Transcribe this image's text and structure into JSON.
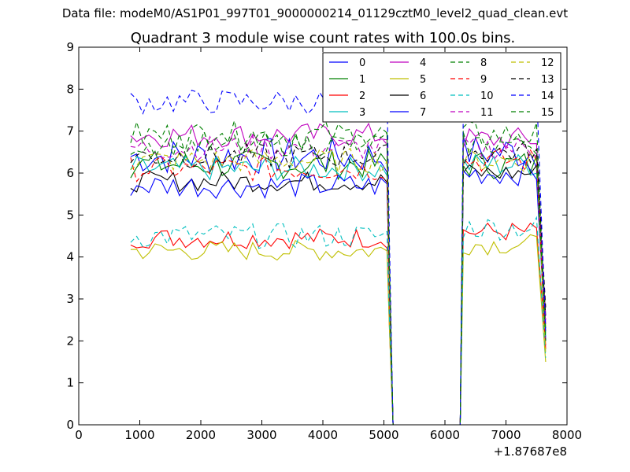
{
  "suptitle": "Data file: modeM0/AS1P01_997T01_9000000214_01129cztM0_level2_quad_clean.evt",
  "chart_data": {
    "type": "line",
    "title": "Quadrant 3 module wise count rates with 100.0s bins.",
    "xlabel": "",
    "ylabel": "",
    "x_offset_label": "+1.87687e8",
    "xlim": [
      0,
      8000
    ],
    "ylim": [
      0,
      9
    ],
    "xticks": [
      0,
      1000,
      2000,
      3000,
      4000,
      5000,
      6000,
      7000,
      8000
    ],
    "yticks": [
      0,
      1,
      2,
      3,
      4,
      5,
      6,
      7,
      8,
      9
    ],
    "grid": false,
    "legend_position": "top-right",
    "segments": [
      {
        "start": 850,
        "end": 5150,
        "step": 100,
        "dropout_end_to_zero": true
      },
      {
        "start": 6250,
        "end": 7650,
        "step": 100,
        "dropout_start_from_zero": true
      }
    ],
    "series": [
      {
        "name": "0",
        "color": "#0000ff",
        "dash": "solid",
        "level1": 6.4,
        "level2": 6.5,
        "noise": 0.45,
        "end": 2.0
      },
      {
        "name": "1",
        "color": "#008000",
        "dash": "solid",
        "level1": 6.2,
        "level2": 6.2,
        "noise": 0.35,
        "end": 2.3
      },
      {
        "name": "2",
        "color": "#ff0000",
        "dash": "solid",
        "level1": 4.45,
        "level2": 4.6,
        "noise": 0.25,
        "end": 1.9
      },
      {
        "name": "3",
        "color": "#00bfbf",
        "dash": "solid",
        "level1": 6.1,
        "level2": 6.2,
        "noise": 0.3,
        "end": 2.1
      },
      {
        "name": "4",
        "color": "#bf00bf",
        "dash": "solid",
        "level1": 6.9,
        "level2": 6.8,
        "noise": 0.3,
        "end": 2.4
      },
      {
        "name": "5",
        "color": "#bfbf00",
        "dash": "solid",
        "level1": 4.15,
        "level2": 4.3,
        "noise": 0.25,
        "end": 1.5
      },
      {
        "name": "6",
        "color": "#000000",
        "dash": "solid",
        "level1": 5.8,
        "level2": 6.0,
        "noise": 0.25,
        "end": 2.6
      },
      {
        "name": "7",
        "color": "#0000ff",
        "dash": "solid",
        "level1": 5.7,
        "level2": 6.0,
        "noise": 0.3,
        "end": 2.0
      },
      {
        "name": "8",
        "color": "#008000",
        "dash": "dashed",
        "level1": 6.9,
        "level2": 6.9,
        "noise": 0.35,
        "end": 2.1
      },
      {
        "name": "9",
        "color": "#ff0000",
        "dash": "dashed",
        "level1": 6.1,
        "level2": 6.3,
        "noise": 0.3,
        "end": 1.8
      },
      {
        "name": "10",
        "color": "#00bfbf",
        "dash": "dashed",
        "level1": 4.5,
        "level2": 4.7,
        "noise": 0.3,
        "end": 1.6
      },
      {
        "name": "11",
        "color": "#bf00bf",
        "dash": "dashed",
        "level1": 6.6,
        "level2": 6.6,
        "noise": 0.3,
        "end": 2.5
      },
      {
        "name": "12",
        "color": "#bfbf00",
        "dash": "dashed",
        "level1": 6.3,
        "level2": 6.3,
        "noise": 0.3,
        "end": 1.7
      },
      {
        "name": "13",
        "color": "#000000",
        "dash": "dashed",
        "level1": 6.4,
        "level2": 6.5,
        "noise": 0.3,
        "end": 2.8
      },
      {
        "name": "14",
        "color": "#0000ff",
        "dash": "dashed",
        "level1": 7.7,
        "level2": 7.8,
        "noise": 0.3,
        "end": 2.2
      },
      {
        "name": "15",
        "color": "#008000",
        "dash": "dashed",
        "level1": 6.7,
        "level2": 6.7,
        "noise": 0.3,
        "end": 2.0
      }
    ]
  }
}
